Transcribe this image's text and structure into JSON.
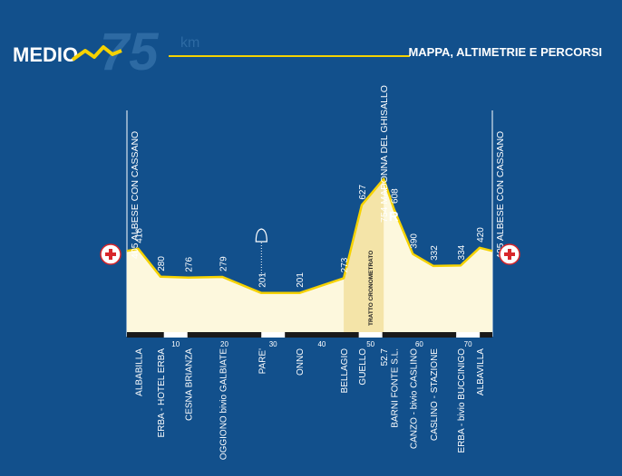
{
  "header": {
    "brand": "MEDIO",
    "distance_number": "75",
    "distance_unit": "km",
    "subtitle": "MAPPA, ALTIMETRIE E PERCORSI"
  },
  "colors": {
    "background": "#12508c",
    "accent": "#f5d200",
    "profile_fill": "#fdf8dd",
    "timed_fill": "#f4e4a8",
    "red": "#d8262b",
    "white": "#ffffff"
  },
  "icons": {
    "first_aid_left": "first-aid-cross-icon",
    "first_aid_right": "first-aid-cross-icon",
    "bell": "bell-icon",
    "refreshment": "R"
  },
  "chart_data": {
    "type": "area",
    "title": "",
    "xlabel": "",
    "ylabel": "",
    "xlim": [
      0,
      75
    ],
    "x_ticks": [
      10,
      20,
      30,
      40,
      50,
      60,
      70
    ],
    "points": [
      {
        "km": 0,
        "alt": 405,
        "alt_label": "",
        "place": ""
      },
      {
        "km": 2.3,
        "alt": 416,
        "alt_label": "416",
        "place": "ALBABILLA"
      },
      {
        "km": 6.9,
        "alt": 280,
        "alt_label": "280",
        "place": "ERBA - HOTEL ERBA"
      },
      {
        "km": 12.6,
        "alt": 276,
        "alt_label": "276",
        "place": "CESNA BRIANZA"
      },
      {
        "km": 19.6,
        "alt": 279,
        "alt_label": "279",
        "place": "OGGIONO bivio GALBIATE"
      },
      {
        "km": 27.6,
        "alt": 201,
        "alt_label": "201",
        "place": "PARE'"
      },
      {
        "km": 35.4,
        "alt": 201,
        "alt_label": "201",
        "place": "ONNO"
      },
      {
        "km": 44.5,
        "alt": 273,
        "alt_label": "273",
        "place": "BELLAGIO"
      },
      {
        "km": 48.2,
        "alt": 627,
        "alt_label": "627",
        "place": "GUELLO"
      },
      {
        "km": 52.7,
        "alt": 754,
        "alt_label": "",
        "place": ""
      },
      {
        "km": 54.8,
        "alt": 608,
        "alt_label": "608",
        "place": "BARNI FONTE S.L."
      },
      {
        "km": 58.7,
        "alt": 390,
        "alt_label": "390",
        "place": "CANZO - bivio CASLINO"
      },
      {
        "km": 62.9,
        "alt": 332,
        "alt_label": "332",
        "place": "CASLINO - STAZIONE"
      },
      {
        "km": 68.5,
        "alt": 334,
        "alt_label": "334",
        "place": "ERBA - bivio BUCCINIGO"
      },
      {
        "km": 72.4,
        "alt": 420,
        "alt_label": "420",
        "place": "ALBAVILLA"
      },
      {
        "km": 75,
        "alt": 405,
        "alt_label": "",
        "place": ""
      }
    ],
    "summit": {
      "km": 52.7,
      "km_label": "52.7",
      "alt_label": "754",
      "name": "MADONNA DEL GHISALLO"
    },
    "start": {
      "alt_label": "405",
      "name": "ALBESE CON CASSANO"
    },
    "finish": {
      "alt_label": "405",
      "name": "ALBESE CON CASSANO"
    },
    "timed_section": {
      "from_km": 44.5,
      "to_km": 52.7,
      "label": "TRATTO CRONOMETRATO"
    },
    "markers": {
      "bell_km": 27.6,
      "refreshment_km": 52.7
    }
  }
}
